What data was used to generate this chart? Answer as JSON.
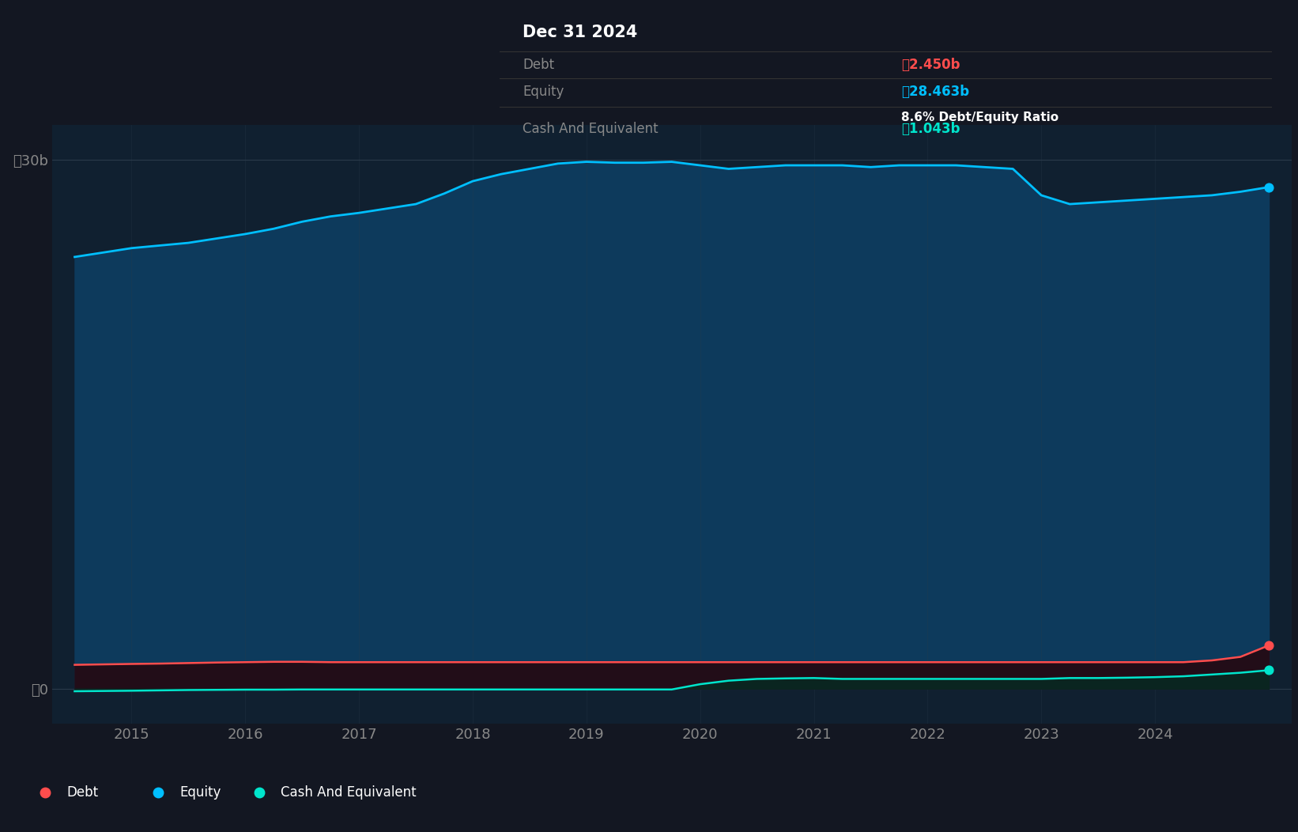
{
  "background_color": "#131722",
  "plot_bg_color": "#102030",
  "title_box": {
    "date": "Dec 31 2024",
    "debt_label": "Debt",
    "debt_value": "ข2.450b",
    "equity_label": "Equity",
    "equity_value": "ข28.463b",
    "ratio_text": "8.6% Debt/Equity Ratio",
    "cash_label": "Cash And Equivalent",
    "cash_value": "ข1.043b",
    "debt_color": "#ff4d4d",
    "equity_color": "#00bfff",
    "cash_color": "#00e5cc",
    "ratio_color": "#ffffff",
    "label_color": "#888888",
    "box_bg": "#000000"
  },
  "years": [
    2014.5,
    2015.0,
    2015.25,
    2015.5,
    2015.75,
    2016.0,
    2016.25,
    2016.5,
    2016.75,
    2017.0,
    2017.25,
    2017.5,
    2017.75,
    2018.0,
    2018.25,
    2018.5,
    2018.75,
    2019.0,
    2019.25,
    2019.5,
    2019.75,
    2020.0,
    2020.25,
    2020.5,
    2020.75,
    2021.0,
    2021.25,
    2021.5,
    2021.75,
    2022.0,
    2022.25,
    2022.5,
    2022.75,
    2023.0,
    2023.25,
    2023.5,
    2023.75,
    2024.0,
    2024.25,
    2024.5,
    2024.75,
    2025.0
  ],
  "equity": [
    24.5,
    25.0,
    25.15,
    25.3,
    25.55,
    25.8,
    26.1,
    26.5,
    26.8,
    27.0,
    27.25,
    27.5,
    28.1,
    28.8,
    29.2,
    29.5,
    29.8,
    29.9,
    29.85,
    29.85,
    29.9,
    29.7,
    29.5,
    29.6,
    29.7,
    29.7,
    29.7,
    29.6,
    29.7,
    29.7,
    29.7,
    29.6,
    29.5,
    28.0,
    27.5,
    27.6,
    27.7,
    27.8,
    27.9,
    28.0,
    28.2,
    28.463
  ],
  "debt": [
    1.35,
    1.4,
    1.42,
    1.45,
    1.48,
    1.5,
    1.52,
    1.52,
    1.5,
    1.5,
    1.5,
    1.5,
    1.5,
    1.5,
    1.5,
    1.5,
    1.5,
    1.5,
    1.5,
    1.5,
    1.5,
    1.5,
    1.5,
    1.5,
    1.5,
    1.5,
    1.5,
    1.5,
    1.5,
    1.5,
    1.5,
    1.5,
    1.5,
    1.5,
    1.5,
    1.5,
    1.5,
    1.5,
    1.5,
    1.6,
    1.8,
    2.45
  ],
  "cash": [
    -0.15,
    -0.12,
    -0.1,
    -0.08,
    -0.07,
    -0.06,
    -0.06,
    -0.05,
    -0.05,
    -0.05,
    -0.05,
    -0.05,
    -0.05,
    -0.05,
    -0.05,
    -0.05,
    -0.05,
    -0.05,
    -0.05,
    -0.05,
    -0.05,
    0.25,
    0.45,
    0.55,
    0.58,
    0.6,
    0.55,
    0.55,
    0.55,
    0.55,
    0.55,
    0.55,
    0.55,
    0.55,
    0.6,
    0.6,
    0.62,
    0.65,
    0.7,
    0.8,
    0.9,
    1.043
  ],
  "equity_color": "#00bfff",
  "debt_color": "#ff4d4d",
  "cash_color": "#00e5cc",
  "fill_equity_color": "#0d3a5c",
  "ylabel_color": "#aaaaaa",
  "grid_color": "#2a3a4a",
  "tick_color": "#888888",
  "ylim": [
    -2,
    32
  ],
  "yticks": [
    0,
    30
  ],
  "ytick_labels": [
    "ข0",
    "ข30b"
  ],
  "xtick_labels": [
    "2015",
    "2016",
    "2017",
    "2018",
    "2019",
    "2020",
    "2021",
    "2022",
    "2023",
    "2024"
  ],
  "legend_labels": [
    "Debt",
    "Equity",
    "Cash And Equivalent"
  ],
  "legend_colors": [
    "#ff4d4d",
    "#00bfff",
    "#00e5cc"
  ]
}
